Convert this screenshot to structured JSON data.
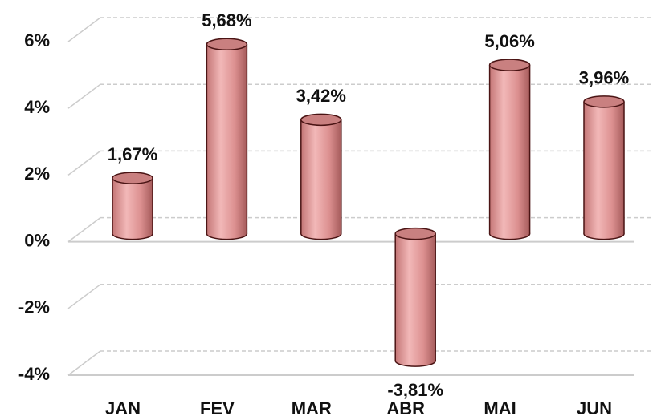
{
  "chart_data": {
    "type": "bar",
    "categories": [
      "JAN",
      "FEV",
      "MAR",
      "ABR",
      "MAI",
      "JUN"
    ],
    "values": [
      1.67,
      5.68,
      3.42,
      -3.81,
      5.06,
      3.96
    ],
    "value_labels": [
      "1,67%",
      "5,68%",
      "3,42%",
      "-3,81%",
      "5,06%",
      "3,96%"
    ],
    "color": "#e8a0a0",
    "ylim": [
      -4,
      6
    ],
    "yticks": [
      {
        "value": -4,
        "label": "-4%"
      },
      {
        "value": -2,
        "label": "-2%"
      },
      {
        "value": 0,
        "label": "0%"
      },
      {
        "value": 2,
        "label": "2%"
      },
      {
        "value": 4,
        "label": "4%"
      },
      {
        "value": 6,
        "label": "6%"
      }
    ],
    "grid": true
  }
}
